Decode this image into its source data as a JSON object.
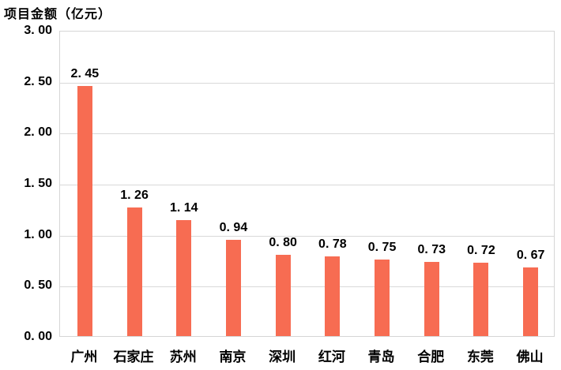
{
  "title": "项目金额（亿元）",
  "colors": {
    "bar": "#f76c52",
    "gridline": "#d9d9d9",
    "plot_border": "#d6d6d6",
    "text": "#000000",
    "background": "#ffffff"
  },
  "chart_data": {
    "type": "bar",
    "title": "项目金额（亿元）",
    "categories": [
      "广州",
      "石家庄",
      "苏州",
      "南京",
      "深圳",
      "红河",
      "青岛",
      "合肥",
      "东莞",
      "佛山"
    ],
    "values": [
      2.45,
      1.26,
      1.14,
      0.94,
      0.8,
      0.78,
      0.75,
      0.73,
      0.72,
      0.67
    ],
    "value_labels": [
      "2. 45",
      "1. 26",
      "1. 14",
      "0. 94",
      "0. 80",
      "0. 78",
      "0. 75",
      "0. 73",
      "0. 72",
      "0. 67"
    ],
    "xlabel": "",
    "ylabel": "",
    "ylim": [
      0,
      3.0
    ],
    "y_tick_step": 0.5,
    "y_tick_labels_top_to_bottom": [
      "3. 00",
      "2. 50",
      "2. 00",
      "1. 50",
      "1. 00",
      "0. 50",
      "0. 00"
    ],
    "grid": true,
    "legend_position": "none",
    "data_labels_shown": true
  }
}
